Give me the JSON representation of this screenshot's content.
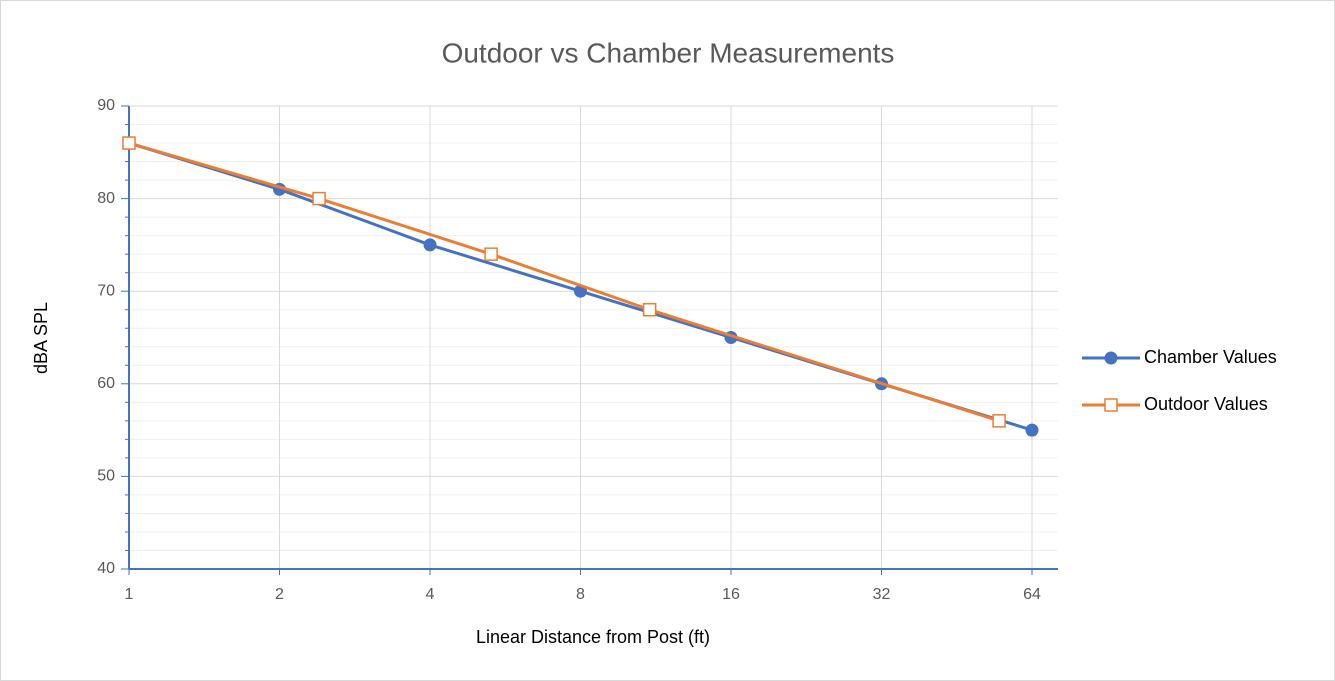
{
  "chart_data": {
    "type": "line",
    "title": "Outdoor vs Chamber Measurements",
    "xlabel": "Linear Distance from Post (ft)",
    "ylabel": "dBA SPL",
    "xscale": "log",
    "logbase": 2,
    "xlim": [
      1,
      64
    ],
    "xticks": [
      1,
      2,
      4,
      8,
      16,
      32,
      64
    ],
    "ylim": [
      40,
      90
    ],
    "yticks": [
      40,
      50,
      60,
      70,
      80,
      90
    ],
    "y_minor_ticks": [
      42,
      44,
      46,
      48,
      52,
      54,
      56,
      58,
      62,
      64,
      66,
      68,
      72,
      74,
      76,
      78,
      82,
      84,
      86,
      88
    ],
    "grid": true,
    "legend": "right",
    "series": [
      {
        "name": "Chamber Values",
        "color": "#4472c4",
        "marker": "circle",
        "x": [
          1,
          2,
          4,
          8,
          16,
          32,
          64
        ],
        "values": [
          86,
          81,
          75,
          70,
          65,
          60,
          55
        ]
      },
      {
        "name": "Outdoor Values",
        "color": "#ed7d31",
        "marker": "square",
        "x": [
          1,
          2.4,
          5.3,
          11,
          55
        ],
        "values": [
          86,
          80,
          74,
          68,
          56
        ]
      }
    ]
  }
}
